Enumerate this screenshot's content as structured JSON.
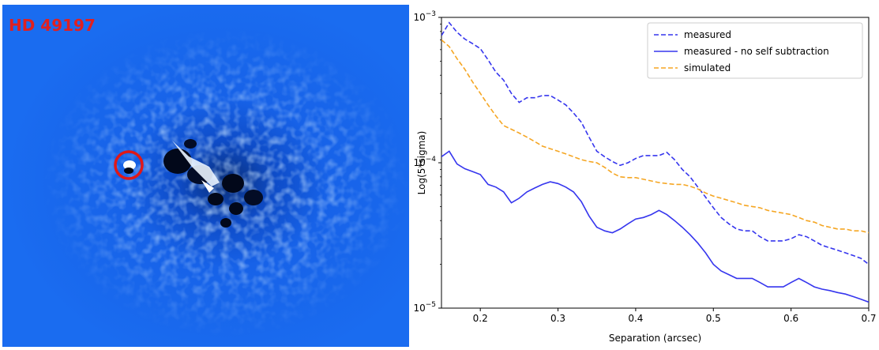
{
  "image_panel": {
    "label": "HD 49197",
    "label_color": "#e02020",
    "background_color": "#1a6cf0",
    "marker_color": "#e01818"
  },
  "chart_data": {
    "type": "line",
    "xlabel": "Separation (arcsec)",
    "ylabel": "Log(5*sigma)",
    "xlim": [
      0.15,
      0.7
    ],
    "ylim": [
      1e-05,
      0.001
    ],
    "yscale": "log",
    "x_ticks": [
      0.2,
      0.3,
      0.4,
      0.5,
      0.6,
      0.7
    ],
    "x_tick_labels": [
      "0.2",
      "0.3",
      "0.4",
      "0.5",
      "0.6",
      "0.7"
    ],
    "y_ticks": [
      1e-05,
      0.0001,
      0.001
    ],
    "y_tick_base": "10",
    "y_tick_exponents": [
      "−5",
      "−4",
      "−3"
    ],
    "legend_position": "top-right",
    "grid": false,
    "series": [
      {
        "name": "measured",
        "color": "#3636ee",
        "dash": "dashed",
        "x": [
          0.15,
          0.16,
          0.17,
          0.18,
          0.19,
          0.2,
          0.21,
          0.22,
          0.23,
          0.24,
          0.25,
          0.26,
          0.27,
          0.28,
          0.29,
          0.3,
          0.31,
          0.32,
          0.33,
          0.34,
          0.35,
          0.36,
          0.37,
          0.38,
          0.39,
          0.4,
          0.41,
          0.42,
          0.43,
          0.44,
          0.45,
          0.46,
          0.47,
          0.48,
          0.49,
          0.5,
          0.51,
          0.52,
          0.53,
          0.54,
          0.55,
          0.56,
          0.57,
          0.58,
          0.59,
          0.6,
          0.61,
          0.62,
          0.63,
          0.64,
          0.65,
          0.66,
          0.67,
          0.68,
          0.69,
          0.7
        ],
        "values": [
          0.00075,
          0.00092,
          0.00079,
          0.00071,
          0.00066,
          0.00061,
          0.00051,
          0.00042,
          0.00037,
          0.0003,
          0.00026,
          0.00028,
          0.00028,
          0.00029,
          0.00029,
          0.00027,
          0.00025,
          0.00022,
          0.00019,
          0.00015,
          0.00012,
          0.00011,
          0.000102,
          9.6e-05,
          0.0001,
          0.000107,
          0.000112,
          0.000112,
          0.000112,
          0.000118,
          0.000105,
          9e-05,
          8e-05,
          6.8e-05,
          5.8e-05,
          4.9e-05,
          4.2e-05,
          3.8e-05,
          3.5e-05,
          3.4e-05,
          3.4e-05,
          3.1e-05,
          2.9e-05,
          2.9e-05,
          2.9e-05,
          3e-05,
          3.2e-05,
          3.1e-05,
          2.9e-05,
          2.7e-05,
          2.6e-05,
          2.5e-05,
          2.4e-05,
          2.3e-05,
          2.2e-05,
          2e-05
        ]
      },
      {
        "name": "measured - no self subtraction",
        "color": "#3636ee",
        "dash": "solid",
        "x": [
          0.15,
          0.16,
          0.17,
          0.18,
          0.19,
          0.2,
          0.21,
          0.22,
          0.23,
          0.24,
          0.25,
          0.26,
          0.27,
          0.28,
          0.29,
          0.3,
          0.31,
          0.32,
          0.33,
          0.34,
          0.35,
          0.36,
          0.37,
          0.38,
          0.39,
          0.4,
          0.41,
          0.42,
          0.43,
          0.44,
          0.45,
          0.46,
          0.47,
          0.48,
          0.49,
          0.5,
          0.51,
          0.52,
          0.53,
          0.54,
          0.55,
          0.56,
          0.57,
          0.58,
          0.59,
          0.6,
          0.61,
          0.62,
          0.63,
          0.64,
          0.65,
          0.66,
          0.67,
          0.68,
          0.69,
          0.7
        ],
        "values": [
          0.00011,
          0.00012,
          9.8e-05,
          9.1e-05,
          8.7e-05,
          8.3e-05,
          7.1e-05,
          6.8e-05,
          6.3e-05,
          5.3e-05,
          5.7e-05,
          6.3e-05,
          6.7e-05,
          7.1e-05,
          7.4e-05,
          7.2e-05,
          6.8e-05,
          6.3e-05,
          5.4e-05,
          4.3e-05,
          3.6e-05,
          3.4e-05,
          3.3e-05,
          3.5e-05,
          3.8e-05,
          4.1e-05,
          4.2e-05,
          4.4e-05,
          4.7e-05,
          4.4e-05,
          4e-05,
          3.6e-05,
          3.2e-05,
          2.8e-05,
          2.4e-05,
          2e-05,
          1.8e-05,
          1.7e-05,
          1.6e-05,
          1.6e-05,
          1.6e-05,
          1.5e-05,
          1.4e-05,
          1.4e-05,
          1.4e-05,
          1.5e-05,
          1.6e-05,
          1.5e-05,
          1.4e-05,
          1.35e-05,
          1.32e-05,
          1.28e-05,
          1.25e-05,
          1.2e-05,
          1.15e-05,
          1.1e-05
        ]
      },
      {
        "name": "simulated",
        "color": "#f5a623",
        "dash": "dashed",
        "x": [
          0.15,
          0.16,
          0.17,
          0.18,
          0.19,
          0.2,
          0.21,
          0.22,
          0.23,
          0.24,
          0.25,
          0.26,
          0.27,
          0.28,
          0.29,
          0.3,
          0.31,
          0.32,
          0.33,
          0.34,
          0.35,
          0.36,
          0.37,
          0.38,
          0.39,
          0.4,
          0.41,
          0.42,
          0.43,
          0.44,
          0.45,
          0.46,
          0.47,
          0.48,
          0.49,
          0.5,
          0.51,
          0.52,
          0.53,
          0.54,
          0.55,
          0.56,
          0.57,
          0.58,
          0.59,
          0.6,
          0.61,
          0.62,
          0.63,
          0.64,
          0.65,
          0.66,
          0.67,
          0.68,
          0.69,
          0.7
        ],
        "values": [
          0.0007,
          0.00063,
          0.00052,
          0.00044,
          0.00036,
          0.0003,
          0.00025,
          0.00021,
          0.00018,
          0.00017,
          0.00016,
          0.00015,
          0.00014,
          0.00013,
          0.000125,
          0.00012,
          0.000115,
          0.00011,
          0.000105,
          0.000102,
          0.0001,
          9.3e-05,
          8.5e-05,
          8e-05,
          7.9e-05,
          7.9e-05,
          7.7e-05,
          7.5e-05,
          7.3e-05,
          7.2e-05,
          7.1e-05,
          7.1e-05,
          6.9e-05,
          6.6e-05,
          6.2e-05,
          5.9e-05,
          5.7e-05,
          5.5e-05,
          5.3e-05,
          5.1e-05,
          5e-05,
          4.9e-05,
          4.7e-05,
          4.6e-05,
          4.5e-05,
          4.4e-05,
          4.2e-05,
          4e-05,
          3.9e-05,
          3.7e-05,
          3.6e-05,
          3.5e-05,
          3.5e-05,
          3.4e-05,
          3.4e-05,
          3.3e-05
        ]
      }
    ]
  }
}
